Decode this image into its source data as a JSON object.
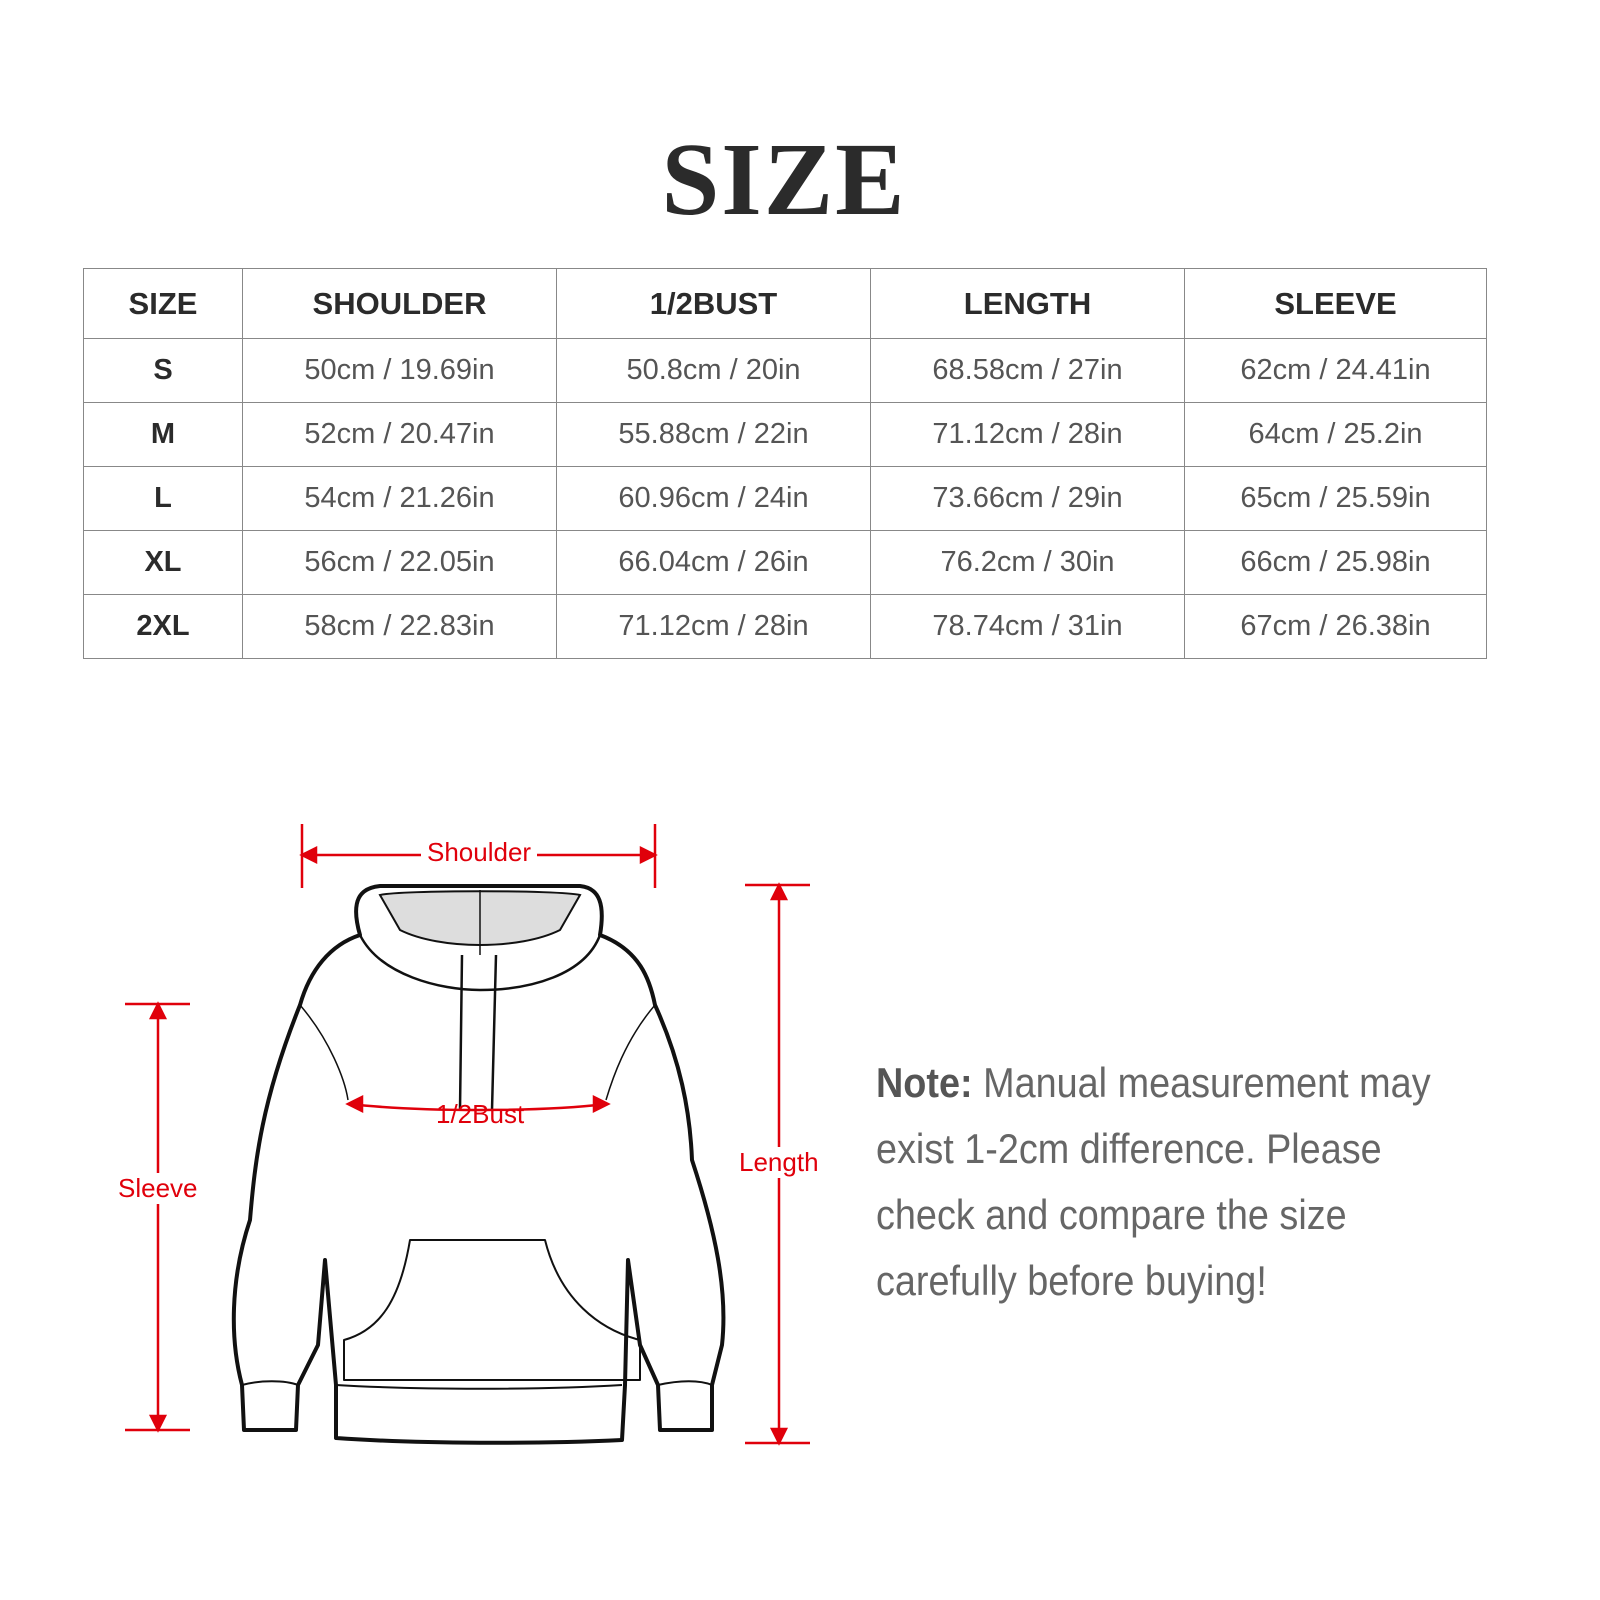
{
  "title": "SIZE",
  "table": {
    "headers": [
      "SIZE",
      "SHOULDER",
      "1/2BUST",
      "LENGTH",
      "SLEEVE"
    ],
    "rows": [
      [
        "S",
        "50cm / 19.69in",
        "50.8cm / 20in",
        "68.58cm / 27in",
        "62cm / 24.41in"
      ],
      [
        "M",
        "52cm / 20.47in",
        "55.88cm / 22in",
        "71.12cm / 28in",
        "64cm / 25.2in"
      ],
      [
        "L",
        "54cm / 21.26in",
        "60.96cm / 24in",
        "73.66cm / 29in",
        "65cm / 25.59in"
      ],
      [
        "XL",
        "56cm / 22.05in",
        "66.04cm / 26in",
        "76.2cm / 30in",
        "66cm / 25.98in"
      ],
      [
        "2XL",
        "58cm / 22.83in",
        "71.12cm / 28in",
        "78.74cm / 31in",
        "67cm / 26.38in"
      ]
    ]
  },
  "diagram": {
    "shoulder": "Shoulder",
    "bust": "1/2Bust",
    "sleeve": "Sleeve",
    "length": "Length",
    "accent": "#e0000b"
  },
  "note": {
    "label": "Note:",
    "text": " Manual measurement may exist 1-2cm difference. Please check and compare the size carefully before buying!"
  }
}
